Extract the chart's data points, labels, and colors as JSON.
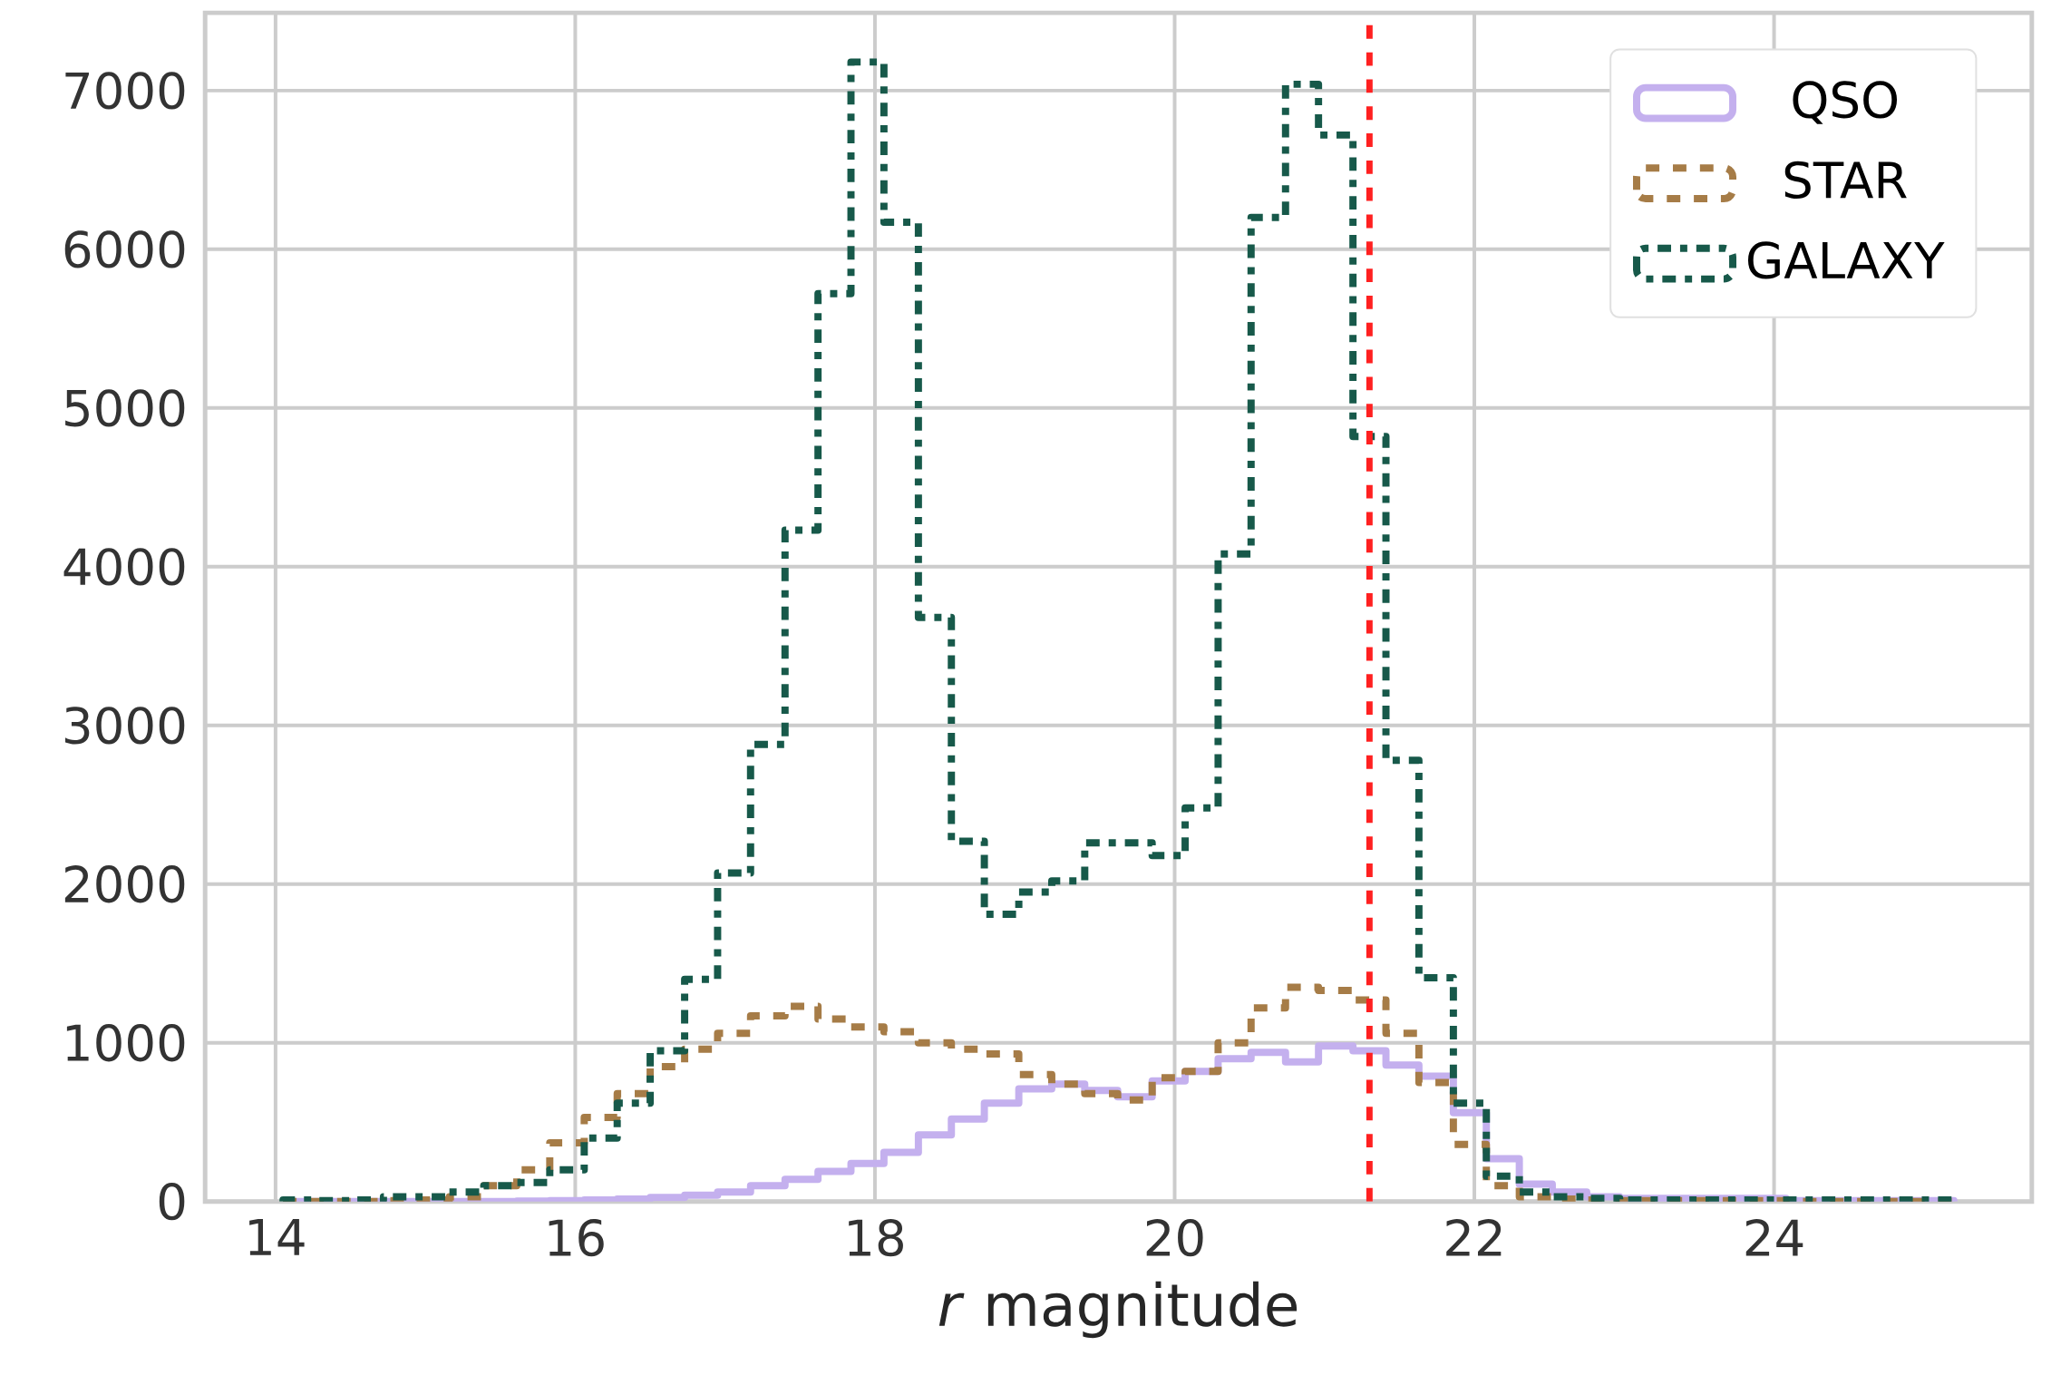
{
  "chart_data": {
    "type": "histogram",
    "xlabel": "*r* magnitude",
    "bins": [
      14.05,
      14.27,
      14.5,
      14.72,
      14.94,
      15.16,
      15.39,
      15.61,
      15.83,
      16.06,
      16.28,
      16.5,
      16.73,
      16.95,
      17.17,
      17.4,
      17.62,
      17.84,
      18.06,
      18.29,
      18.51,
      18.73,
      18.96,
      19.18,
      19.4,
      19.62,
      19.85,
      20.07,
      20.29,
      20.51,
      20.74,
      20.96,
      21.19,
      21.41,
      21.63,
      21.86,
      22.08,
      22.3,
      22.52,
      22.75,
      22.97,
      23.19,
      23.42,
      23.64,
      23.86,
      24.08,
      24.31,
      24.53,
      24.75,
      24.98,
      25.2
    ],
    "series": [
      {
        "name": "QSO",
        "color": "#c4b0ee",
        "line_style": "solid",
        "values": [
          0,
          0,
          0,
          0,
          0,
          0,
          0,
          2,
          5,
          10,
          15,
          25,
          40,
          60,
          100,
          140,
          190,
          240,
          310,
          420,
          520,
          620,
          710,
          740,
          700,
          660,
          760,
          820,
          900,
          940,
          880,
          980,
          950,
          860,
          790,
          560,
          270,
          110,
          60,
          30,
          20,
          20,
          20,
          20,
          20,
          5,
          5,
          5,
          5,
          5
        ]
      },
      {
        "name": "STAR",
        "color": "#a67c47",
        "line_style": "dashed",
        "values": [
          0,
          0,
          0,
          5,
          10,
          30,
          100,
          200,
          370,
          530,
          680,
          850,
          960,
          1060,
          1170,
          1230,
          1150,
          1100,
          1070,
          1000,
          960,
          930,
          800,
          740,
          680,
          640,
          780,
          820,
          1000,
          1220,
          1350,
          1330,
          1270,
          1060,
          750,
          360,
          100,
          30,
          15,
          10,
          5,
          5,
          5,
          5,
          5,
          0,
          0,
          0,
          0,
          0
        ]
      },
      {
        "name": "GALAXY",
        "color": "#17594a",
        "line_style": "dashdot",
        "values": [
          10,
          5,
          10,
          30,
          30,
          60,
          100,
          120,
          200,
          400,
          620,
          950,
          1400,
          2070,
          2880,
          4230,
          5720,
          7180,
          6170,
          3680,
          2270,
          1810,
          1950,
          2020,
          2260,
          2260,
          2180,
          2480,
          4080,
          6200,
          7040,
          6720,
          4820,
          2780,
          1410,
          620,
          160,
          60,
          30,
          20,
          10,
          10,
          10,
          10,
          10,
          10,
          10,
          10,
          10,
          10
        ]
      }
    ],
    "ref_lines": [
      {
        "axis": "x",
        "value": 21.3,
        "color": "#ff2020",
        "line_style": "dashed"
      }
    ],
    "xlim": [
      13.53,
      25.72
    ],
    "ylim": [
      0,
      7490
    ],
    "xticks": [
      14,
      16,
      18,
      20,
      22,
      24
    ],
    "yticks": [
      0,
      1000,
      2000,
      3000,
      4000,
      5000,
      6000,
      7000
    ],
    "grid": true,
    "legend": "top right"
  }
}
